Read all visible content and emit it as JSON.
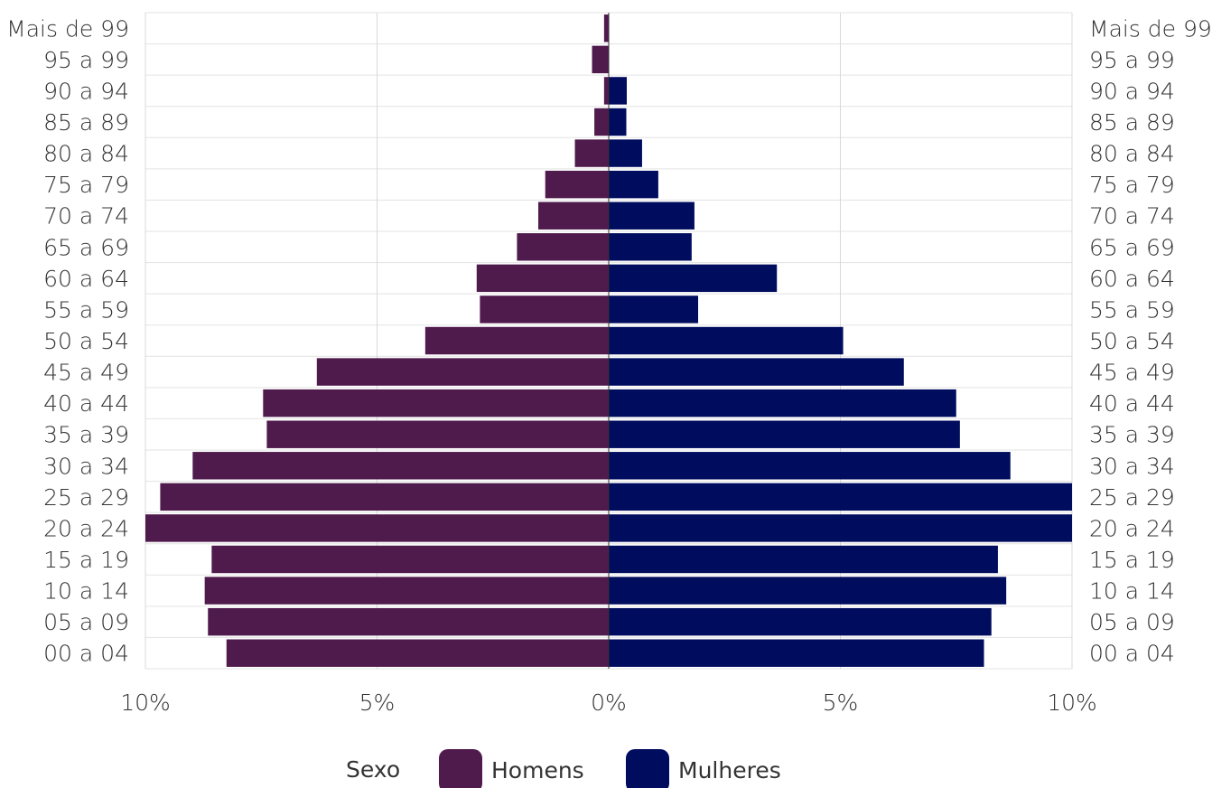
{
  "chart_data": {
    "type": "bar",
    "subtype": "population-pyramid",
    "orientation": "horizontal",
    "categories": [
      "00 a 04",
      "05 a 09",
      "10 a 14",
      "15 a 19",
      "20 a 24",
      "25 a 29",
      "30 a 34",
      "35 a 39",
      "40 a 44",
      "45 a 49",
      "50 a 54",
      "55 a 59",
      "60 a 64",
      "65 a 69",
      "70 a 74",
      "75 a 79",
      "80 a 84",
      "85 a 89",
      "90 a 94",
      "95 a 99",
      "Mais de 99"
    ],
    "series": [
      {
        "name": "Homens",
        "color": "#4f1a4c",
        "side": "left",
        "values": [
          8.25,
          8.65,
          8.72,
          8.57,
          10.0,
          9.68,
          8.98,
          7.38,
          7.46,
          6.3,
          3.96,
          2.78,
          2.85,
          1.98,
          1.52,
          1.37,
          0.73,
          0.31,
          0.1,
          0.36,
          0.1
        ]
      },
      {
        "name": "Mulheres",
        "color": "#000c5e",
        "side": "right",
        "values": [
          8.1,
          8.26,
          8.58,
          8.4,
          10.0,
          10.0,
          8.67,
          7.58,
          7.5,
          6.37,
          5.06,
          1.93,
          3.63,
          1.79,
          1.85,
          1.07,
          0.72,
          0.38,
          0.39,
          0.0,
          0.0
        ]
      }
    ],
    "x_ticks": [
      "10%",
      "5%",
      "0%",
      "5%",
      "10%"
    ],
    "xlim": [
      -10,
      10
    ],
    "grid": true,
    "legend": {
      "title": "Sexo",
      "placement": "bottom-center",
      "items": [
        "Homens",
        "Mulheres"
      ]
    },
    "title": "",
    "xlabel": "",
    "ylabel": ""
  }
}
